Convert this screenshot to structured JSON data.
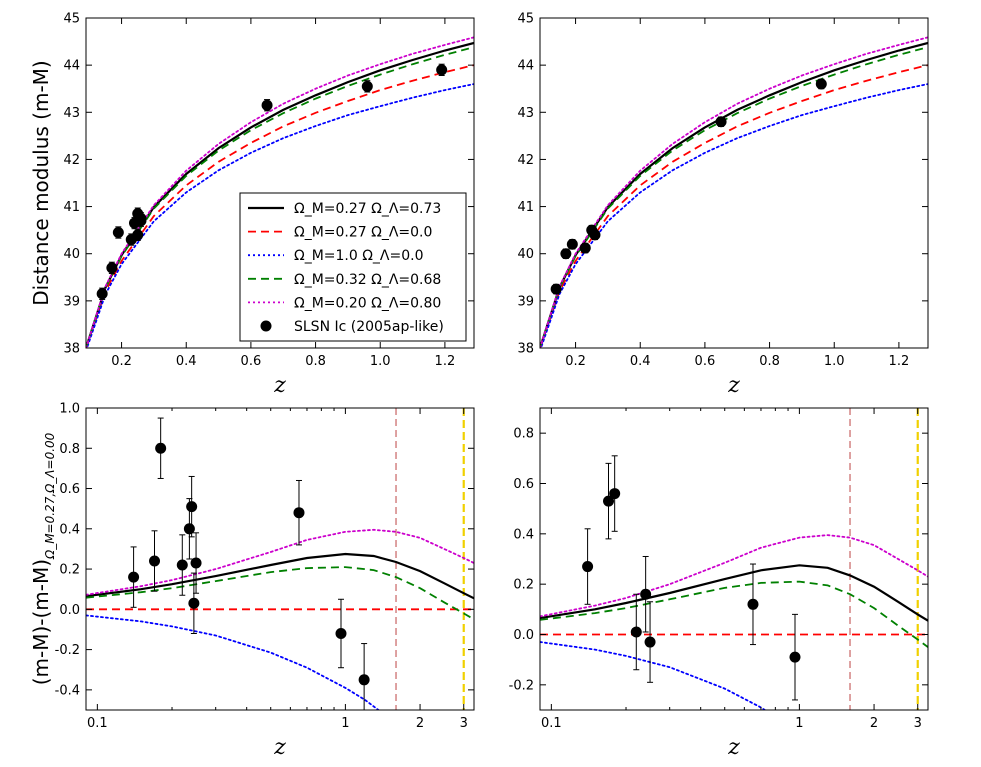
{
  "legend": [
    {
      "label": "Ω_M=0.27 Ω_Λ=0.73",
      "color": "#000000",
      "dash": "solid"
    },
    {
      "label": "Ω_M=0.27 Ω_Λ=0.0",
      "color": "#ff0000",
      "dash": "dashed"
    },
    {
      "label": "Ω_M=1.0 Ω_Λ=0.0",
      "color": "#0000ff",
      "dash": "dotted"
    },
    {
      "label": "Ω_M=0.32 Ω_Λ=0.68",
      "color": "#008000",
      "dash": "dashed"
    },
    {
      "label": "Ω_M=0.20 Ω_Λ=0.80",
      "color": "#cc00cc",
      "dash": "dotted"
    },
    {
      "label": "SLSN Ic (2005ap-like)",
      "color": "#000000",
      "dash": "marker"
    }
  ],
  "chart_data": [
    {
      "type": "line",
      "title": "",
      "xlabel": "z",
      "ylabel": "Distance modulus (m-M)",
      "xlim": [
        0.09,
        1.29
      ],
      "ylim": [
        38,
        45
      ],
      "xscale": "linear",
      "xticks": [
        "0.2",
        "0.4",
        "0.6",
        "0.8",
        "1.0",
        "1.2"
      ],
      "yticks": [
        "38",
        "39",
        "40",
        "41",
        "42",
        "43",
        "44",
        "45"
      ],
      "series": [
        {
          "name": "Ω_M=0.27 Ω_Λ=0.73",
          "x": [
            0.09,
            0.15,
            0.2,
            0.3,
            0.4,
            0.5,
            0.6,
            0.7,
            0.8,
            0.9,
            1.0,
            1.1,
            1.2,
            1.29
          ],
          "values": [
            38.0,
            39.28,
            39.97,
            40.99,
            41.69,
            42.24,
            42.68,
            43.05,
            43.36,
            43.64,
            43.89,
            44.11,
            44.31,
            44.47
          ]
        },
        {
          "name": "Ω_M=0.27 Ω_Λ=0.0",
          "x": [
            0.09,
            0.15,
            0.2,
            0.3,
            0.4,
            0.5,
            0.6,
            0.7,
            0.8,
            0.9,
            1.0,
            1.1,
            1.2,
            1.29
          ],
          "values": [
            38.0,
            39.2,
            39.85,
            40.8,
            41.45,
            41.95,
            42.35,
            42.7,
            42.99,
            43.24,
            43.47,
            43.67,
            43.85,
            44.0
          ]
        },
        {
          "name": "Ω_M=1.0 Ω_Λ=0.0",
          "x": [
            0.09,
            0.15,
            0.2,
            0.3,
            0.4,
            0.5,
            0.6,
            0.7,
            0.8,
            0.9,
            1.0,
            1.1,
            1.2,
            1.29
          ],
          "values": [
            37.94,
            39.14,
            39.78,
            40.69,
            41.3,
            41.77,
            42.14,
            42.45,
            42.71,
            42.94,
            43.13,
            43.31,
            43.47,
            43.6
          ]
        },
        {
          "name": "Ω_M=0.32 Ω_Λ=0.68",
          "x": [
            0.09,
            0.15,
            0.2,
            0.3,
            0.4,
            0.5,
            0.6,
            0.7,
            0.8,
            0.9,
            1.0,
            1.1,
            1.2,
            1.29
          ],
          "values": [
            38.0,
            39.27,
            39.95,
            40.96,
            41.65,
            42.19,
            42.62,
            42.98,
            43.29,
            43.56,
            43.8,
            44.02,
            44.22,
            44.38
          ]
        },
        {
          "name": "Ω_M=0.20 Ω_Λ=0.80",
          "x": [
            0.09,
            0.15,
            0.2,
            0.3,
            0.4,
            0.5,
            0.6,
            0.7,
            0.8,
            0.9,
            1.0,
            1.1,
            1.2,
            1.29
          ],
          "values": [
            38.0,
            39.3,
            40.0,
            41.03,
            41.76,
            42.33,
            42.79,
            43.18,
            43.5,
            43.78,
            44.02,
            44.24,
            44.43,
            44.59
          ]
        }
      ],
      "points": {
        "name": "SLSN Ic (2005ap-like)",
        "x": [
          0.14,
          0.17,
          0.19,
          0.23,
          0.24,
          0.25,
          0.25,
          0.26,
          0.26,
          0.65,
          0.96,
          1.19
        ],
        "values": [
          39.15,
          39.7,
          40.45,
          40.3,
          40.65,
          40.85,
          40.4,
          40.7,
          40.75,
          43.15,
          43.55,
          43.9
        ],
        "err": [
          0.12,
          0.12,
          0.12,
          0.12,
          0.12,
          0.12,
          0.12,
          0.12,
          0.12,
          0.12,
          0.12,
          0.12
        ]
      }
    },
    {
      "type": "line",
      "title": "",
      "xlabel": "z",
      "ylabel": "",
      "xlim": [
        0.09,
        1.29
      ],
      "ylim": [
        38,
        45
      ],
      "xscale": "linear",
      "xticks": [
        "0.2",
        "0.4",
        "0.6",
        "0.8",
        "1.0",
        "1.2"
      ],
      "yticks": [
        "38",
        "39",
        "40",
        "41",
        "42",
        "43",
        "44",
        "45"
      ],
      "series": [
        {
          "name": "Ω_M=0.27 Ω_Λ=0.73",
          "x": [
            0.09,
            0.15,
            0.2,
            0.3,
            0.4,
            0.5,
            0.6,
            0.7,
            0.8,
            0.9,
            1.0,
            1.1,
            1.2,
            1.29
          ],
          "values": [
            38.0,
            39.28,
            39.97,
            40.99,
            41.69,
            42.24,
            42.68,
            43.05,
            43.36,
            43.64,
            43.89,
            44.11,
            44.31,
            44.47
          ]
        },
        {
          "name": "Ω_M=0.27 Ω_Λ=0.0",
          "x": [
            0.09,
            0.15,
            0.2,
            0.3,
            0.4,
            0.5,
            0.6,
            0.7,
            0.8,
            0.9,
            1.0,
            1.1,
            1.2,
            1.29
          ],
          "values": [
            38.0,
            39.2,
            39.85,
            40.8,
            41.45,
            41.95,
            42.35,
            42.7,
            42.99,
            43.24,
            43.47,
            43.67,
            43.85,
            44.0
          ]
        },
        {
          "name": "Ω_M=1.0 Ω_Λ=0.0",
          "x": [
            0.09,
            0.15,
            0.2,
            0.3,
            0.4,
            0.5,
            0.6,
            0.7,
            0.8,
            0.9,
            1.0,
            1.1,
            1.2,
            1.29
          ],
          "values": [
            37.94,
            39.14,
            39.78,
            40.69,
            41.3,
            41.77,
            42.14,
            42.45,
            42.71,
            42.94,
            43.13,
            43.31,
            43.47,
            43.6
          ]
        },
        {
          "name": "Ω_M=0.32 Ω_Λ=0.68",
          "x": [
            0.09,
            0.15,
            0.2,
            0.3,
            0.4,
            0.5,
            0.6,
            0.7,
            0.8,
            0.9,
            1.0,
            1.1,
            1.2,
            1.29
          ],
          "values": [
            38.0,
            39.27,
            39.95,
            40.96,
            41.65,
            42.19,
            42.62,
            42.98,
            43.29,
            43.56,
            43.8,
            44.02,
            44.22,
            44.38
          ]
        },
        {
          "name": "Ω_M=0.20 Ω_Λ=0.80",
          "x": [
            0.09,
            0.15,
            0.2,
            0.3,
            0.4,
            0.5,
            0.6,
            0.7,
            0.8,
            0.9,
            1.0,
            1.1,
            1.2,
            1.29
          ],
          "values": [
            38.0,
            39.3,
            40.0,
            41.03,
            41.76,
            42.33,
            42.79,
            43.18,
            43.5,
            43.78,
            44.02,
            44.24,
            44.43,
            44.59
          ]
        }
      ],
      "points": {
        "name": "SLSN Ic (2005ap-like)",
        "x": [
          0.14,
          0.17,
          0.19,
          0.23,
          0.25,
          0.26,
          0.65,
          0.96
        ],
        "values": [
          39.25,
          40.0,
          40.2,
          40.12,
          40.5,
          40.4,
          42.8,
          43.6
        ],
        "err": [
          0.1,
          0.1,
          0.1,
          0.1,
          0.1,
          0.1,
          0.1,
          0.1
        ]
      }
    },
    {
      "type": "line",
      "title": "",
      "xlabel": "z",
      "ylabel": "(m-M)-(m-M)",
      "ylabel_subscript": "Ω_M=0.27,Ω_Λ=0.00",
      "xlim": [
        0.09,
        3.3
      ],
      "ylim": [
        -0.5,
        1.0
      ],
      "xscale": "log",
      "xticks": [
        "0.1",
        "1",
        "2",
        "3"
      ],
      "yticks": [
        "-0.4",
        "-0.2",
        "0.0",
        "0.2",
        "0.4",
        "0.6",
        "0.8",
        "1.0"
      ],
      "vlines": [
        {
          "x": 1.6,
          "color": "#c86464"
        },
        {
          "x": 3.0,
          "color": "#f0d000"
        }
      ],
      "series": [
        {
          "name": "Ω_M=0.27 Ω_Λ=0.73",
          "x": [
            0.09,
            0.15,
            0.2,
            0.3,
            0.5,
            0.7,
            1.0,
            1.3,
            1.6,
            2.0,
            2.5,
            3.0,
            3.3
          ],
          "values": [
            0.065,
            0.1,
            0.125,
            0.165,
            0.22,
            0.255,
            0.275,
            0.265,
            0.235,
            0.19,
            0.13,
            0.08,
            0.055
          ]
        },
        {
          "name": "Ω_M=0.27 Ω_Λ=0.0",
          "x": [
            0.09,
            3.3
          ],
          "values": [
            0.0,
            0.0
          ]
        },
        {
          "name": "Ω_M=1.0 Ω_Λ=0.0",
          "x": [
            0.09,
            0.15,
            0.2,
            0.3,
            0.5,
            0.7,
            1.0,
            1.2,
            1.5
          ],
          "values": [
            -0.03,
            -0.06,
            -0.085,
            -0.13,
            -0.215,
            -0.29,
            -0.39,
            -0.45,
            -0.54
          ]
        },
        {
          "name": "Ω_M=0.32 Ω_Λ=0.68",
          "x": [
            0.09,
            0.15,
            0.2,
            0.3,
            0.5,
            0.7,
            1.0,
            1.3,
            1.6,
            2.0,
            2.5,
            3.0,
            3.3
          ],
          "values": [
            0.058,
            0.085,
            0.105,
            0.14,
            0.185,
            0.205,
            0.21,
            0.195,
            0.16,
            0.105,
            0.035,
            -0.02,
            -0.05
          ]
        },
        {
          "name": "Ω_M=0.20 Ω_Λ=0.80",
          "x": [
            0.09,
            0.15,
            0.2,
            0.3,
            0.5,
            0.7,
            1.0,
            1.3,
            1.6,
            2.0,
            2.5,
            3.0,
            3.3
          ],
          "values": [
            0.072,
            0.115,
            0.145,
            0.2,
            0.285,
            0.345,
            0.385,
            0.395,
            0.385,
            0.355,
            0.3,
            0.255,
            0.23
          ]
        }
      ],
      "points": {
        "name": "SLSN Ic (2005ap-like)",
        "x": [
          0.14,
          0.17,
          0.18,
          0.22,
          0.235,
          0.24,
          0.245,
          0.25,
          0.65,
          0.96,
          1.19
        ],
        "values": [
          0.16,
          0.24,
          0.8,
          0.22,
          0.4,
          0.51,
          0.03,
          0.23,
          0.48,
          -0.12,
          -0.35
        ],
        "err": [
          0.15,
          0.15,
          0.15,
          0.15,
          0.15,
          0.15,
          0.15,
          0.15,
          0.16,
          0.17,
          0.18
        ]
      }
    },
    {
      "type": "line",
      "title": "",
      "xlabel": "z",
      "ylabel": "",
      "xlim": [
        0.09,
        3.3
      ],
      "ylim": [
        -0.3,
        0.9
      ],
      "xscale": "log",
      "xticks": [
        "0.1",
        "1",
        "2",
        "3"
      ],
      "yticks": [
        "-0.2",
        "0.0",
        "0.2",
        "0.4",
        "0.6",
        "0.8"
      ],
      "vlines": [
        {
          "x": 1.6,
          "color": "#c86464"
        },
        {
          "x": 3.0,
          "color": "#f0d000"
        }
      ],
      "series": [
        {
          "name": "Ω_M=0.27 Ω_Λ=0.73",
          "x": [
            0.09,
            0.15,
            0.2,
            0.3,
            0.5,
            0.7,
            1.0,
            1.3,
            1.6,
            2.0,
            2.5,
            3.0,
            3.3
          ],
          "values": [
            0.065,
            0.1,
            0.125,
            0.165,
            0.22,
            0.255,
            0.275,
            0.265,
            0.235,
            0.19,
            0.13,
            0.08,
            0.055
          ]
        },
        {
          "name": "Ω_M=0.27 Ω_Λ=0.0",
          "x": [
            0.09,
            3.3
          ],
          "values": [
            0.0,
            0.0
          ]
        },
        {
          "name": "Ω_M=1.0 Ω_Λ=0.0",
          "x": [
            0.09,
            0.15,
            0.2,
            0.3,
            0.5,
            0.7,
            1.0,
            1.2
          ],
          "values": [
            -0.03,
            -0.06,
            -0.085,
            -0.13,
            -0.215,
            -0.29,
            -0.39,
            -0.45
          ]
        },
        {
          "name": "Ω_M=0.32 Ω_Λ=0.68",
          "x": [
            0.09,
            0.15,
            0.2,
            0.3,
            0.5,
            0.7,
            1.0,
            1.3,
            1.6,
            2.0,
            2.5,
            3.0,
            3.3
          ],
          "values": [
            0.058,
            0.085,
            0.105,
            0.14,
            0.185,
            0.205,
            0.21,
            0.195,
            0.16,
            0.105,
            0.035,
            -0.02,
            -0.05
          ]
        },
        {
          "name": "Ω_M=0.20 Ω_Λ=0.80",
          "x": [
            0.09,
            0.15,
            0.2,
            0.3,
            0.5,
            0.7,
            1.0,
            1.3,
            1.6,
            2.0,
            2.5,
            3.0,
            3.3
          ],
          "values": [
            0.072,
            0.115,
            0.145,
            0.2,
            0.285,
            0.345,
            0.385,
            0.395,
            0.385,
            0.355,
            0.3,
            0.255,
            0.23
          ]
        }
      ],
      "points": {
        "name": "SLSN Ic (2005ap-like)",
        "x": [
          0.14,
          0.17,
          0.18,
          0.22,
          0.24,
          0.25,
          0.65,
          0.96
        ],
        "values": [
          0.27,
          0.53,
          0.56,
          0.01,
          0.16,
          -0.03,
          0.12,
          -0.09
        ],
        "err": [
          0.15,
          0.15,
          0.15,
          0.15,
          0.15,
          0.16,
          0.16,
          0.17
        ]
      }
    }
  ]
}
